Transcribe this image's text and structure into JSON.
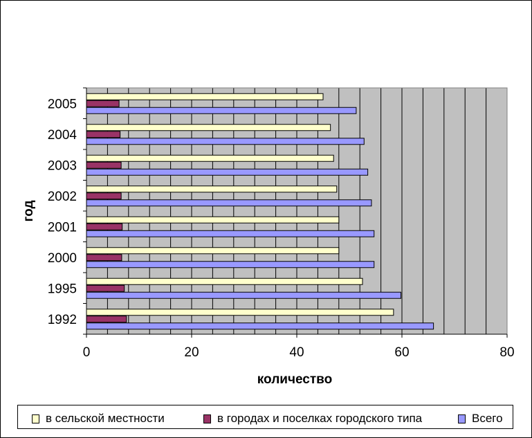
{
  "chart_data": {
    "type": "bar",
    "orientation": "horizontal",
    "categories": [
      "1992",
      "1995",
      "2000",
      "2001",
      "2002",
      "2003",
      "2004",
      "2005"
    ],
    "series": [
      {
        "name": "в сельской местности",
        "color": "#FFFFCC",
        "values": [
          58.4,
          52.5,
          48.0,
          48.0,
          47.6,
          47.0,
          46.4,
          45.0
        ]
      },
      {
        "name": "в городах и поселках городского типа",
        "color": "#993366",
        "values": [
          7.6,
          7.2,
          6.7,
          6.8,
          6.6,
          6.6,
          6.4,
          6.2
        ]
      },
      {
        "name": "Всего",
        "color": "#9999FF",
        "values": [
          66.0,
          59.8,
          54.7,
          54.7,
          54.2,
          53.5,
          52.8,
          51.3
        ]
      }
    ],
    "xlabel": "количество",
    "ylabel": "год",
    "xlim": [
      0,
      80
    ],
    "xticks": [
      "0",
      "20",
      "40",
      "60",
      "80"
    ],
    "plot_background": "#C0C0C0",
    "grid": true,
    "legend_position": "bottom"
  }
}
